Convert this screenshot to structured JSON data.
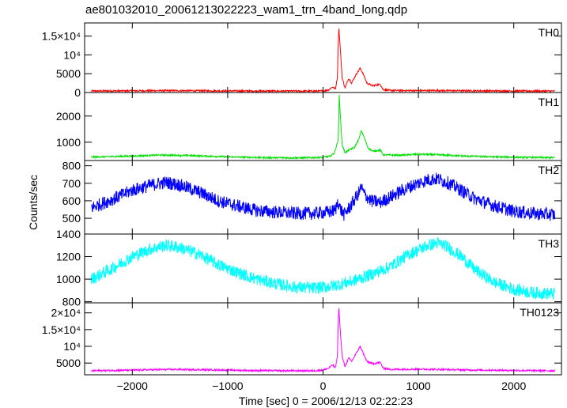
{
  "chart_data": {
    "type": "line",
    "title": "ae801032010_20061213022223_wam1_trn_4band_long.qdp",
    "xlabel": "Time [sec] 0 = 2006/12/13 02:22:23",
    "ylabel": "Counts/sec",
    "xlim": [
      -2500,
      2500
    ],
    "x_ticks": [
      -2000,
      -1000,
      0,
      1000,
      2000
    ],
    "x_tick_labels": [
      "−2000",
      "−1000",
      "0",
      "1000",
      "2000"
    ],
    "grid": false,
    "legend": "none",
    "panels": [
      {
        "name": "TH0",
        "color": "#ff0000",
        "ylim": [
          0,
          18500
        ],
        "y_ticks": [
          0,
          5000,
          10000,
          15000
        ],
        "y_tick_labels": [
          "0",
          "5000",
          "10⁴",
          "1.5×10⁴"
        ],
        "points": [
          [
            -2430,
            400
          ],
          [
            -2000,
            450
          ],
          [
            -1600,
            500
          ],
          [
            -1200,
            450
          ],
          [
            -800,
            400
          ],
          [
            -400,
            380
          ],
          [
            -100,
            380
          ],
          [
            0,
            400
          ],
          [
            60,
            700
          ],
          [
            100,
            1500
          ],
          [
            130,
            900
          ],
          [
            150,
            4000
          ],
          [
            165,
            17500
          ],
          [
            180,
            12000
          ],
          [
            200,
            4000
          ],
          [
            230,
            1200
          ],
          [
            270,
            3800
          ],
          [
            300,
            2500
          ],
          [
            340,
            4500
          ],
          [
            390,
            6500
          ],
          [
            420,
            5000
          ],
          [
            460,
            2500
          ],
          [
            520,
            1800
          ],
          [
            600,
            2200
          ],
          [
            630,
            800
          ],
          [
            700,
            550
          ],
          [
            1000,
            500
          ],
          [
            1200,
            520
          ],
          [
            1600,
            450
          ],
          [
            2000,
            400
          ],
          [
            2430,
            380
          ]
        ]
      },
      {
        "name": "TH1",
        "color": "#00e000",
        "ylim": [
          300,
          2900
        ],
        "y_ticks": [
          1000,
          2000
        ],
        "y_tick_labels": [
          "1000",
          "2000"
        ],
        "points": [
          [
            -2430,
            430
          ],
          [
            -2000,
            470
          ],
          [
            -1700,
            510
          ],
          [
            -1400,
            490
          ],
          [
            -1000,
            440
          ],
          [
            -600,
            410
          ],
          [
            -200,
            400
          ],
          [
            0,
            420
          ],
          [
            80,
            470
          ],
          [
            120,
            600
          ],
          [
            160,
            1100
          ],
          [
            170,
            2800
          ],
          [
            185,
            1800
          ],
          [
            200,
            900
          ],
          [
            230,
            600
          ],
          [
            280,
            720
          ],
          [
            330,
            800
          ],
          [
            380,
            1150
          ],
          [
            400,
            1450
          ],
          [
            430,
            1200
          ],
          [
            470,
            800
          ],
          [
            520,
            650
          ],
          [
            600,
            700
          ],
          [
            630,
            520
          ],
          [
            800,
            500
          ],
          [
            1000,
            540
          ],
          [
            1200,
            520
          ],
          [
            1500,
            470
          ],
          [
            1800,
            440
          ],
          [
            2100,
            420
          ],
          [
            2430,
            410
          ]
        ]
      },
      {
        "name": "TH2",
        "color": "#0000ff",
        "ylim": [
          410,
          830
        ],
        "y_ticks": [
          500,
          600,
          700,
          800
        ],
        "y_tick_labels": [
          "500",
          "600",
          "700",
          "800"
        ],
        "points": [
          [
            -2430,
            560
          ],
          [
            -2200,
            610
          ],
          [
            -2000,
            660
          ],
          [
            -1800,
            690
          ],
          [
            -1650,
            705
          ],
          [
            -1500,
            690
          ],
          [
            -1300,
            650
          ],
          [
            -1100,
            600
          ],
          [
            -900,
            570
          ],
          [
            -700,
            545
          ],
          [
            -500,
            535
          ],
          [
            -300,
            528
          ],
          [
            -100,
            528
          ],
          [
            50,
            535
          ],
          [
            130,
            545
          ],
          [
            155,
            600
          ],
          [
            175,
            560
          ],
          [
            220,
            520
          ],
          [
            300,
            580
          ],
          [
            380,
            650
          ],
          [
            400,
            680
          ],
          [
            430,
            640
          ],
          [
            500,
            600
          ],
          [
            600,
            590
          ],
          [
            700,
            620
          ],
          [
            800,
            650
          ],
          [
            950,
            690
          ],
          [
            1100,
            720
          ],
          [
            1200,
            725
          ],
          [
            1300,
            705
          ],
          [
            1450,
            660
          ],
          [
            1600,
            610
          ],
          [
            1800,
            570
          ],
          [
            2000,
            540
          ],
          [
            2200,
            528
          ],
          [
            2430,
            520
          ]
        ]
      },
      {
        "name": "TH3",
        "color": "#00ffff",
        "ylim": [
          790,
          1400
        ],
        "y_ticks": [
          800,
          1000,
          1200,
          1400
        ],
        "y_tick_labels": [
          "800",
          "1000",
          "1200",
          "1400"
        ],
        "points": [
          [
            -2430,
            1000
          ],
          [
            -2200,
            1100
          ],
          [
            -2000,
            1200
          ],
          [
            -1800,
            1270
          ],
          [
            -1650,
            1300
          ],
          [
            -1500,
            1280
          ],
          [
            -1300,
            1220
          ],
          [
            -1100,
            1130
          ],
          [
            -900,
            1060
          ],
          [
            -700,
            1000
          ],
          [
            -500,
            960
          ],
          [
            -300,
            930
          ],
          [
            -100,
            920
          ],
          [
            100,
            940
          ],
          [
            300,
            980
          ],
          [
            500,
            1040
          ],
          [
            700,
            1110
          ],
          [
            900,
            1220
          ],
          [
            1100,
            1300
          ],
          [
            1200,
            1320
          ],
          [
            1300,
            1290
          ],
          [
            1450,
            1200
          ],
          [
            1600,
            1080
          ],
          [
            1800,
            970
          ],
          [
            2000,
            910
          ],
          [
            2200,
            880
          ],
          [
            2430,
            870
          ]
        ]
      },
      {
        "name": "TH0123",
        "color": "#ff00ff",
        "ylim": [
          1500,
          23000
        ],
        "y_ticks": [
          5000,
          10000,
          15000,
          20000
        ],
        "y_tick_labels": [
          "5000",
          "10⁴",
          "1.5×10⁴",
          "2×10⁴"
        ],
        "points": [
          [
            -2430,
            2700
          ],
          [
            -2000,
            2900
          ],
          [
            -1600,
            3100
          ],
          [
            -1200,
            3000
          ],
          [
            -800,
            2800
          ],
          [
            -400,
            2700
          ],
          [
            -100,
            2700
          ],
          [
            0,
            2900
          ],
          [
            60,
            3500
          ],
          [
            100,
            4500
          ],
          [
            130,
            3500
          ],
          [
            150,
            7000
          ],
          [
            165,
            22000
          ],
          [
            180,
            15000
          ],
          [
            200,
            7000
          ],
          [
            230,
            4000
          ],
          [
            270,
            6500
          ],
          [
            300,
            5500
          ],
          [
            340,
            7500
          ],
          [
            390,
            10000
          ],
          [
            420,
            8000
          ],
          [
            460,
            5500
          ],
          [
            520,
            4800
          ],
          [
            600,
            5200
          ],
          [
            630,
            3500
          ],
          [
            700,
            3100
          ],
          [
            1000,
            3200
          ],
          [
            1200,
            3100
          ],
          [
            1600,
            2900
          ],
          [
            2000,
            2800
          ],
          [
            2430,
            2700
          ]
        ]
      }
    ]
  }
}
